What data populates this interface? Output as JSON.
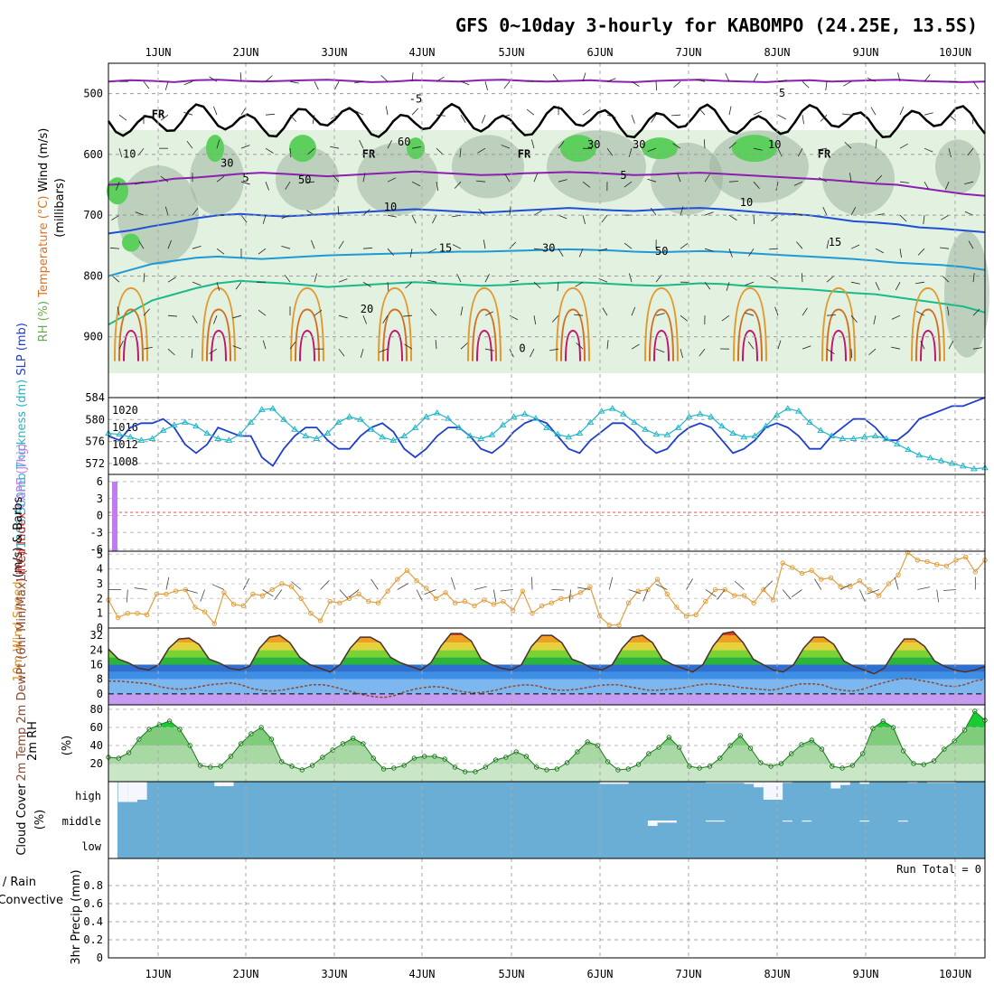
{
  "chart_data": {
    "type": "meteogram",
    "title": "GFS 0~10day 3-hourly for KABOMPO (24.25E, 13.5S)",
    "x_labels": [
      "1JUN",
      "2JUN",
      "3JUN",
      "4JUN",
      "5JUN",
      "6JUN",
      "7JUN",
      "8JUN",
      "9JUN",
      "10JUN"
    ],
    "panels": [
      {
        "id": "upper_air",
        "ylabel_parts": [
          "RH (%)",
          "Temperature (°C)",
          "Wind (m/s)"
        ],
        "yaxis_title": "(millibars)",
        "yticks": [
          500,
          600,
          700,
          800,
          900
        ],
        "ylim": [
          1000,
          450
        ],
        "freezing_label": "FR",
        "rh_labels": [
          "10",
          "30",
          "50",
          "60",
          "30",
          "30",
          "30",
          "50",
          "10"
        ],
        "isotherm_labels": [
          "-5",
          "-5",
          "5",
          "5",
          "10",
          "10",
          "15",
          "15",
          "20",
          "0"
        ],
        "isotherms": [
          {
            "name": "-5",
            "color": "#8a1fb0",
            "levels": [
              480,
              478,
              479,
              481,
              478,
              477,
              479,
              480,
              479,
              478,
              477,
              479,
              481,
              480,
              478,
              479,
              480,
              478,
              477,
              479,
              480,
              479,
              478,
              480,
              481,
              479,
              478,
              477,
              479,
              480,
              481,
              479,
              478,
              480,
              479,
              478,
              477,
              479,
              480,
              481,
              480
            ]
          },
          {
            "name": "5",
            "color": "#8a1fb0",
            "levels": [
              650,
              648,
              645,
              640,
              638,
              635,
              632,
              630,
              632,
              634,
              636,
              634,
              632,
              630,
              628,
              630,
              632,
              634,
              633,
              631,
              630,
              629,
              630,
              632,
              634,
              633,
              631,
              630,
              632,
              634,
              636,
              638,
              640,
              642,
              645,
              648,
              650,
              655,
              660,
              665,
              668
            ]
          },
          {
            "name": "10",
            "color": "#1e4fd6",
            "levels": [
              730,
              725,
              718,
              712,
              705,
              700,
              698,
              700,
              702,
              700,
              698,
              696,
              694,
              692,
              690,
              692,
              694,
              696,
              694,
              692,
              690,
              688,
              690,
              692,
              693,
              691,
              689,
              688,
              690,
              693,
              696,
              698,
              700,
              705,
              710,
              712,
              715,
              720,
              722,
              725,
              728
            ]
          },
          {
            "name": "15",
            "color": "#1e9ad6",
            "levels": [
              800,
              790,
              780,
              775,
              770,
              768,
              770,
              772,
              770,
              768,
              766,
              765,
              764,
              763,
              762,
              761,
              760,
              760,
              759,
              758,
              757,
              756,
              757,
              758,
              760,
              761,
              760,
              759,
              760,
              762,
              764,
              766,
              768,
              770,
              772,
              775,
              778,
              780,
              782,
              785,
              790
            ]
          },
          {
            "name": "20",
            "color": "#1aba8a",
            "levels": [
              880,
              860,
              840,
              830,
              820,
              812,
              808,
              810,
              812,
              815,
              818,
              816,
              814,
              812,
              810,
              812,
              814,
              816,
              815,
              813,
              812,
              810,
              811,
              813,
              815,
              816,
              814,
              812,
              813,
              816,
              818,
              820,
              822,
              825,
              828,
              830,
              835,
              840,
              845,
              850,
              860
            ]
          }
        ]
      },
      {
        "id": "slp_thickness",
        "ylabel_parts": [
          "1000-500mb",
          "Thickness (dm)",
          "SLP (mb)"
        ],
        "left_ticks": [
          572,
          576,
          580,
          584
        ],
        "right_ticks": [
          1008,
          1012,
          1016,
          1020
        ],
        "slp": [
          1014,
          1013,
          1016,
          1017,
          1017,
          1018,
          1016,
          1012,
          1010,
          1012,
          1016,
          1015,
          1014,
          1014,
          1009,
          1007,
          1011,
          1014,
          1016,
          1016,
          1013,
          1011,
          1011,
          1014,
          1016,
          1017,
          1015,
          1011,
          1009,
          1011,
          1014,
          1016,
          1016,
          1014,
          1011,
          1010,
          1012,
          1015,
          1017,
          1018,
          1017,
          1014,
          1011,
          1010,
          1013,
          1015,
          1017,
          1017,
          1015,
          1012,
          1010,
          1011,
          1014,
          1016,
          1017,
          1016,
          1013,
          1010,
          1011,
          1013,
          1016,
          1017,
          1016,
          1014,
          1011,
          1011,
          1014,
          1016,
          1018,
          1018,
          1016,
          1013,
          1013,
          1015,
          1018,
          1019,
          1020,
          1021,
          1021,
          1022,
          1023
        ],
        "thickness": [
          577.5,
          577.3,
          576.8,
          576.2,
          576.5,
          578,
          579,
          579.5,
          578.8,
          577.5,
          576.5,
          576.2,
          577.3,
          579.5,
          581.8,
          582,
          580,
          578.2,
          577,
          576.5,
          577.5,
          579.5,
          580.5,
          580,
          578.2,
          576.8,
          576.2,
          577,
          578.5,
          580.5,
          581.2,
          580.2,
          578.5,
          577,
          576.5,
          577.2,
          579,
          580.5,
          581,
          580.2,
          578.5,
          577.3,
          576.8,
          577.5,
          579.5,
          581.5,
          582,
          581,
          579.5,
          578.2,
          577.3,
          577.2,
          578.5,
          580.5,
          581,
          580.5,
          578.8,
          577.5,
          576.8,
          577,
          578.8,
          580.8,
          582,
          581.5,
          579.5,
          578,
          577,
          576.5,
          576.5,
          576.8,
          577,
          576.5,
          575.5,
          574.5,
          573.5,
          573,
          572.5,
          572,
          571.5,
          571,
          571.2
        ]
      },
      {
        "id": "lifted_index_cape",
        "ylabel_parts": [
          "Lifted Index",
          "CAPE (J/kg)"
        ],
        "left_ticks": [
          "6",
          "3",
          "0",
          "-3",
          "-6"
        ],
        "cape_bar_hour": 0,
        "cape_value": 6
      },
      {
        "id": "wind10m",
        "ylabel_parts": [
          "10m Wind",
          "Speed",
          "(m/s) & Barbs"
        ],
        "left_ticks": [
          0,
          1,
          2,
          3,
          4,
          5
        ],
        "speed": [
          1.9,
          0.7,
          1.0,
          1.0,
          0.9,
          2.3,
          2.3,
          2.5,
          2.6,
          1.4,
          1.1,
          0.3,
          2.4,
          1.6,
          1.5,
          2.3,
          2.2,
          2.6,
          3.0,
          2.8,
          2.0,
          1.0,
          0.5,
          1.8,
          1.7,
          2.0,
          2.3,
          1.8,
          1.7,
          2.5,
          3.3,
          3.9,
          3.2,
          2.7,
          2.0,
          2.4,
          1.7,
          1.8,
          1.5,
          1.9,
          1.6,
          1.8,
          1.2,
          2.5,
          1.0,
          1.5,
          1.7,
          2.0,
          2.1,
          2.4,
          2.8,
          0.8,
          0.2,
          0.2,
          1.7,
          2.5,
          2.6,
          3.3,
          2.3,
          1.4,
          0.8,
          0.9,
          1.8,
          2.6,
          2.6,
          2.2,
          2.2,
          1.7,
          2.6,
          1.9,
          4.4,
          4.1,
          3.7,
          3.9,
          3.3,
          3.4,
          2.8,
          2.8,
          3.2,
          2.6,
          2.2,
          3.0,
          3.6,
          5.1,
          4.6,
          4.5,
          4.3,
          4.2,
          4.6,
          4.8,
          3.8,
          4.6
        ]
      },
      {
        "id": "temp2m",
        "ylabel_parts": [
          "2m Temp",
          "2m DewPt",
          "(6hr Min/Max) (°C)"
        ],
        "left_ticks": [
          0,
          8,
          16,
          24,
          32
        ],
        "temp": [
          24.5,
          19,
          17,
          14,
          13,
          16,
          25,
          30,
          30.5,
          27,
          19,
          17,
          14,
          13,
          15,
          25,
          31,
          32,
          28,
          20,
          16,
          14,
          12,
          16,
          25,
          31,
          31,
          28,
          20,
          17,
          15,
          13,
          17,
          26,
          33,
          33,
          29,
          19,
          16,
          14,
          13,
          16,
          26,
          32,
          32,
          28,
          19,
          17,
          14,
          13,
          16,
          25,
          31,
          32,
          28,
          19,
          16,
          14,
          12,
          16,
          26,
          33,
          34,
          28,
          19,
          16,
          13,
          12,
          16,
          25,
          31,
          31,
          27,
          18,
          15,
          13,
          11,
          14,
          23,
          30,
          30,
          26,
          18,
          15,
          13,
          12,
          13,
          15
        ],
        "dewpt": [
          7,
          7,
          6.5,
          6,
          5.5,
          4,
          3,
          2.5,
          3,
          4,
          5,
          5.5,
          6,
          5,
          3,
          2,
          1.5,
          2,
          3,
          4,
          5,
          5,
          4,
          2.5,
          1,
          -0.5,
          -1.5,
          -2,
          -1,
          1,
          2.5,
          3.5,
          4,
          3.5,
          2,
          1,
          0.5,
          1,
          2,
          3.5,
          4.5,
          5,
          4.5,
          3,
          2,
          2,
          2.5,
          3.5,
          4.5,
          5,
          5,
          4,
          3,
          2,
          2,
          2.5,
          3,
          4,
          5,
          5.5,
          5,
          4.5,
          3.5,
          3,
          2.5,
          2,
          3,
          4.5,
          5.5,
          5.5,
          5,
          3,
          2,
          1.5,
          2.5,
          4.5,
          6,
          7.5,
          8.5,
          8,
          7,
          6,
          4.5,
          4,
          5,
          7,
          8
        ]
      },
      {
        "id": "rh2m",
        "ylabel_parts": [
          "2m RH",
          "(%)"
        ],
        "left_ticks": [
          20,
          40,
          60,
          80
        ],
        "rh": [
          27,
          26,
          32,
          47,
          58,
          63,
          67,
          58,
          40,
          18,
          16,
          17,
          28,
          42,
          53,
          60,
          47,
          22,
          17,
          13,
          18,
          27,
          35,
          42,
          48,
          42,
          26,
          14,
          15,
          18,
          26,
          28,
          28,
          25,
          16,
          11,
          11,
          16,
          24,
          27,
          33,
          28,
          16,
          13,
          14,
          21,
          33,
          44,
          40,
          22,
          13,
          14,
          19,
          31,
          38,
          49,
          38,
          17,
          15,
          17,
          26,
          40,
          51,
          37,
          21,
          17,
          20,
          31,
          41,
          46,
          36,
          17,
          15,
          18,
          31,
          59,
          67,
          60,
          34,
          20,
          19,
          23,
          36,
          45,
          57,
          78,
          68
        ]
      },
      {
        "id": "cloud",
        "ylabel_parts": [
          "Cloud Cover",
          "(%)"
        ],
        "levels": [
          "high",
          "middle",
          "low"
        ],
        "high": [
          0,
          90,
          90,
          80,
          0,
          0,
          0,
          0,
          0,
          0,
          0,
          20,
          20,
          0,
          0,
          0,
          0,
          0,
          0,
          0,
          0,
          0,
          0,
          0,
          0,
          0,
          0,
          0,
          0,
          0,
          0,
          0,
          0,
          0,
          0,
          0,
          0,
          0,
          0,
          0,
          0,
          0,
          0,
          0,
          0,
          0,
          0,
          0,
          0,
          0,
          0,
          10,
          10,
          10,
          0,
          0,
          0,
          0,
          0,
          0,
          0,
          0,
          5,
          5,
          5,
          5,
          10,
          25,
          80,
          80,
          5,
          0,
          0,
          0,
          0,
          30,
          15,
          0,
          10,
          0,
          0,
          0,
          0,
          5,
          0,
          5,
          5,
          5,
          0,
          0,
          0
        ],
        "middle": [
          0,
          0,
          0,
          0,
          0,
          0,
          0,
          0,
          0,
          0,
          0,
          0,
          0,
          0,
          0,
          0,
          0,
          0,
          0,
          0,
          0,
          0,
          0,
          0,
          0,
          0,
          0,
          0,
          0,
          0,
          0,
          0,
          0,
          0,
          0,
          0,
          0,
          0,
          0,
          0,
          0,
          0,
          0,
          0,
          0,
          0,
          0,
          0,
          0,
          0,
          0,
          0,
          0,
          0,
          0,
          0,
          50,
          20,
          20,
          0,
          0,
          0,
          10,
          10,
          0,
          0,
          0,
          0,
          0,
          0,
          10,
          0,
          10,
          0,
          0,
          0,
          0,
          0,
          10,
          0,
          0,
          0,
          10,
          0,
          0,
          0,
          0,
          0,
          0,
          0,
          0
        ]
      },
      {
        "id": "precip",
        "ylabel_parts": [
          "Total / Rain",
          "Convective",
          "3hr Precip (mm)"
        ],
        "left_ticks": [
          "0",
          "0.2",
          "0.4",
          "0.6",
          "0.8"
        ],
        "run_total_label": "Run Total = 0",
        "ylim": [
          0,
          1
        ]
      }
    ]
  },
  "colors": {
    "temp_line": "#4c2f27",
    "dewpt_line": "#8a4a34",
    "rh_fill": "#c9e7c7",
    "rh_green": "#1acc33",
    "cloud_blue": "#6aaed6",
    "slp": "#1e3fcc",
    "thick": "#22b6c8",
    "cape": "#c17df0",
    "wind": "#e0a040",
    "isotherm_20": "#1aba8a",
    "isotherm_15": "#1e9ad6",
    "isotherm_10": "#1e4fd6",
    "isotherm_5": "#8a1fb0",
    "orange_contours": "#e09a30",
    "red_contours": "#c0146e"
  }
}
